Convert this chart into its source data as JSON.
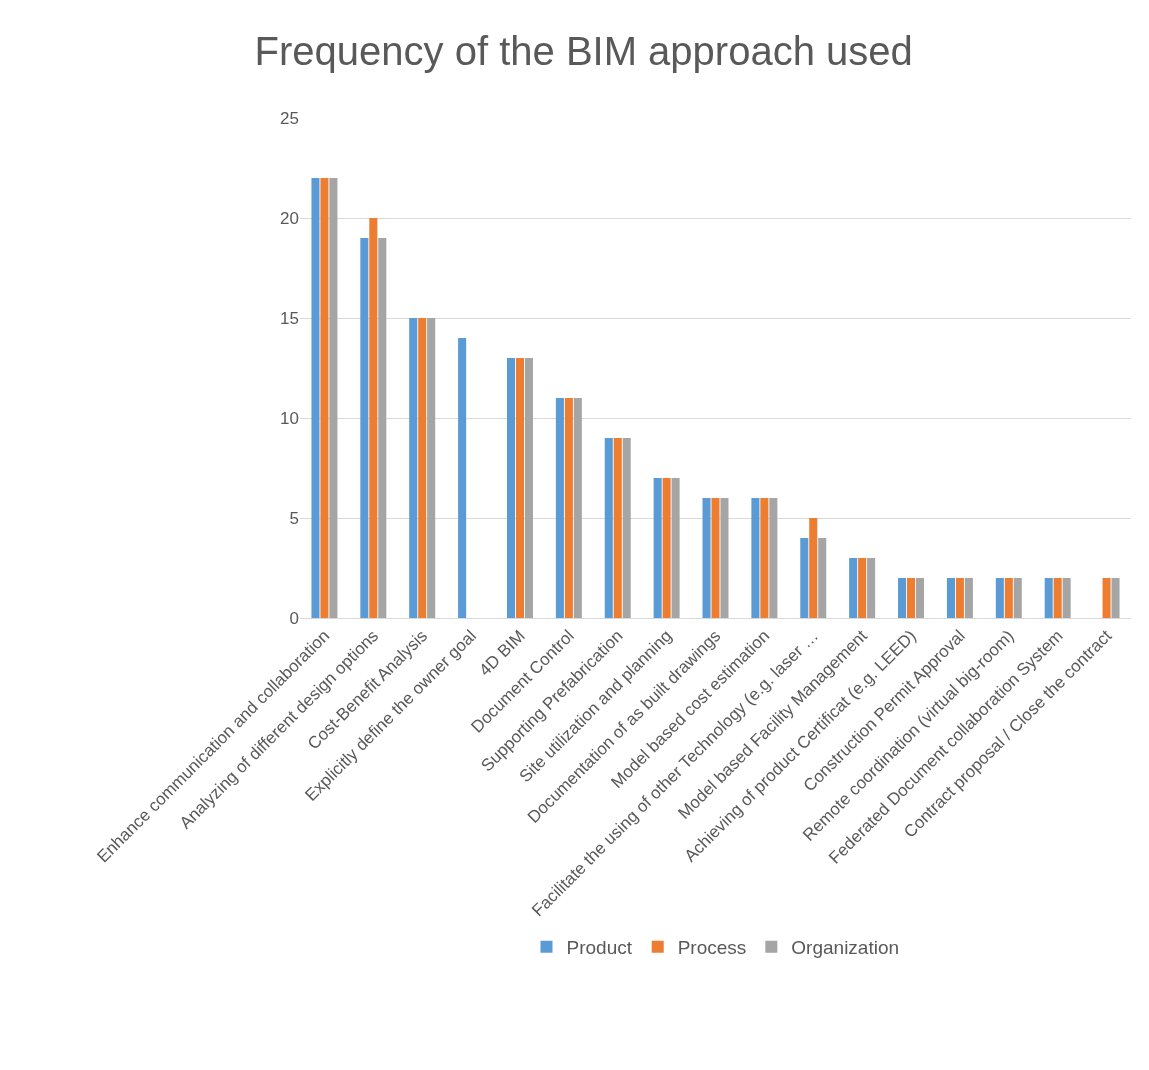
{
  "chart_data": {
    "type": "bar",
    "title": "Frequency of the BIM approach used",
    "categories": [
      "Enhance communication and collaboration",
      "Analyzing of different design options",
      "Cost-Benefit Analysis",
      "Explicitly define the owner goal",
      "4D BIM",
      "Document Control",
      "Supporting Prefabrication",
      "Site utilization and planning",
      "Documentation of as built drawings",
      "Model based cost estimation",
      "Facilitate the using of other Technology (e.g. laser …",
      "Model based Facility Management",
      "Achieving of product Certificat (e.g. LEED)",
      "Construction Permit Approval",
      "Remote coordination (virtual big-room)",
      "Federated Document collaboration System",
      "Contract proposal / Close the contract"
    ],
    "series": [
      {
        "name": "Product",
        "color": "#5b9bd5",
        "values": [
          22,
          19,
          15,
          14,
          13,
          11,
          9,
          7,
          6,
          6,
          4,
          3,
          2,
          2,
          2,
          2,
          null
        ]
      },
      {
        "name": "Process",
        "color": "#ed7d31",
        "values": [
          22,
          20,
          15,
          null,
          13,
          11,
          9,
          7,
          6,
          6,
          5,
          3,
          2,
          2,
          2,
          2,
          2
        ]
      },
      {
        "name": "Organization",
        "color": "#a5a5a5",
        "values": [
          22,
          19,
          15,
          null,
          13,
          11,
          9,
          7,
          6,
          6,
          4,
          3,
          2,
          2,
          2,
          2,
          2
        ]
      }
    ],
    "ylim": [
      0,
      25
    ],
    "yticks": [
      0,
      5,
      10,
      15,
      20,
      25
    ],
    "grid": "y",
    "legend": "bottom"
  }
}
